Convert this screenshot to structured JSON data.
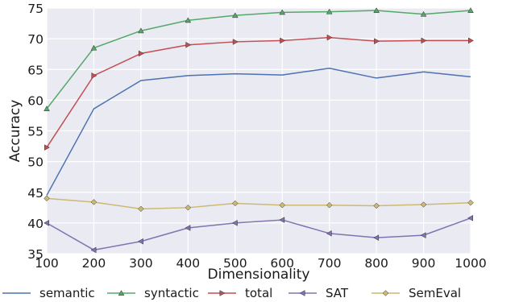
{
  "chart_data": {
    "type": "line",
    "x": [
      100,
      200,
      300,
      400,
      500,
      600,
      700,
      800,
      900,
      1000
    ],
    "xlabel": "Dimensionality",
    "ylabel": "Accuracy",
    "xlim": [
      100,
      1000
    ],
    "ylim": [
      35,
      75
    ],
    "xticks": [
      "100",
      "200",
      "300",
      "400",
      "500",
      "600",
      "700",
      "800",
      "900",
      "1000"
    ],
    "yticks": [
      "35",
      "40",
      "45",
      "50",
      "55",
      "60",
      "65",
      "70",
      "75"
    ],
    "grid": true,
    "background": "#eaeaf2",
    "legend_position": "bottom",
    "series": [
      {
        "name": "semantic",
        "color": "#4c72b0",
        "marker": "none",
        "values": [
          44.5,
          58.6,
          63.2,
          64.0,
          64.3,
          64.1,
          65.2,
          63.6,
          64.6,
          63.8
        ]
      },
      {
        "name": "syntactic",
        "color": "#55a868",
        "marker": "triangle-up",
        "values": [
          58.6,
          68.5,
          71.3,
          73.0,
          73.8,
          74.3,
          74.4,
          74.6,
          74.0,
          74.6
        ]
      },
      {
        "name": "total",
        "color": "#c44e52",
        "marker": "triangle-right",
        "values": [
          52.3,
          64.0,
          67.6,
          69.0,
          69.5,
          69.7,
          70.2,
          69.6,
          69.7,
          69.7
        ]
      },
      {
        "name": "SAT",
        "color": "#8172b2",
        "marker": "triangle-left",
        "values": [
          40.0,
          35.6,
          37.0,
          39.2,
          40.0,
          40.5,
          38.3,
          37.6,
          38.0,
          40.8
        ]
      },
      {
        "name": "SemEval",
        "color": "#ccb974",
        "marker": "diamond",
        "values": [
          44.0,
          43.4,
          42.3,
          42.5,
          43.2,
          42.9,
          42.9,
          42.8,
          43.0,
          43.3
        ]
      }
    ]
  }
}
